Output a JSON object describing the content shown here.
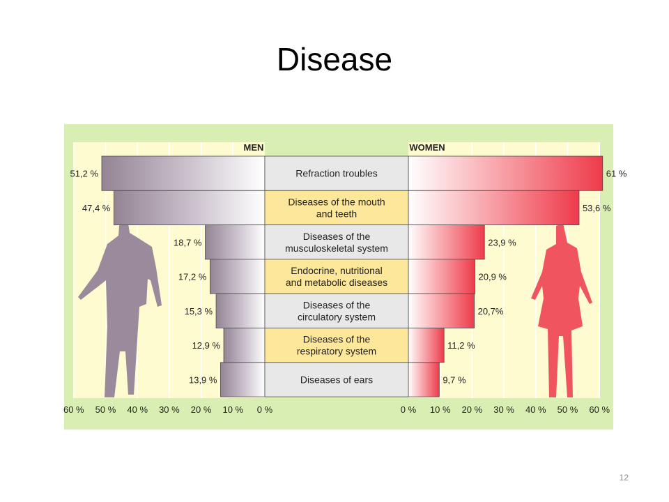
{
  "slide": {
    "title": "Disease",
    "page_number": "12"
  },
  "colors": {
    "panel_bg": "#d9eeb3",
    "plot_bg": "#fdfbcf",
    "men": "#9b8a9b",
    "women": "#f0555f",
    "label_box_grey": "#e8e8e8",
    "label_box_yellow": "#fde79a"
  },
  "chart_data": {
    "type": "bar",
    "subtype": "diverging-horizontal-bar",
    "series": [
      {
        "name": "MEN",
        "side": "left",
        "values": [
          51.2,
          47.4,
          18.7,
          17.2,
          15.3,
          12.9,
          13.9
        ],
        "value_labels": [
          "51,2 %",
          "47,4 %",
          "18,7 %",
          "17,2 %",
          "15,3 %",
          "12,9 %",
          "13,9 %"
        ]
      },
      {
        "name": "WOMEN",
        "side": "right",
        "values": [
          61,
          53.6,
          23.9,
          20.9,
          20.7,
          11.2,
          9.7
        ],
        "value_labels": [
          "61 %",
          "53,6 %",
          "23,9 %",
          "20,9 %",
          "20,7%",
          "11,2 %",
          "9,7 %"
        ]
      }
    ],
    "categories": [
      {
        "lines": [
          "Refraction troubles"
        ],
        "highlight": false
      },
      {
        "lines": [
          "Diseases of the mouth",
          "and teeth"
        ],
        "highlight": true
      },
      {
        "lines": [
          "Diseases of the",
          "musculoskeletal system"
        ],
        "highlight": false
      },
      {
        "lines": [
          "Endocrine, nutritional",
          "and metabolic diseases"
        ],
        "highlight": true
      },
      {
        "lines": [
          "Diseases of the",
          "circulatory system"
        ],
        "highlight": false
      },
      {
        "lines": [
          "Diseases of the",
          "respiratory system"
        ],
        "highlight": true
      },
      {
        "lines": [
          "Diseases of ears"
        ],
        "highlight": false
      }
    ],
    "axis": {
      "range": [
        0,
        60
      ],
      "ticks": [
        0,
        10,
        20,
        30,
        40,
        50,
        60
      ],
      "men_tick_labels": [
        "60 %",
        "50 %",
        "40 %",
        "30 %",
        "20 %",
        "10 %",
        "0 %"
      ],
      "women_tick_labels": [
        "0 %",
        "10 %",
        "20 %",
        "30 %",
        "40 %",
        "50 %",
        "60 %"
      ]
    },
    "grid": true,
    "legend": "top"
  }
}
